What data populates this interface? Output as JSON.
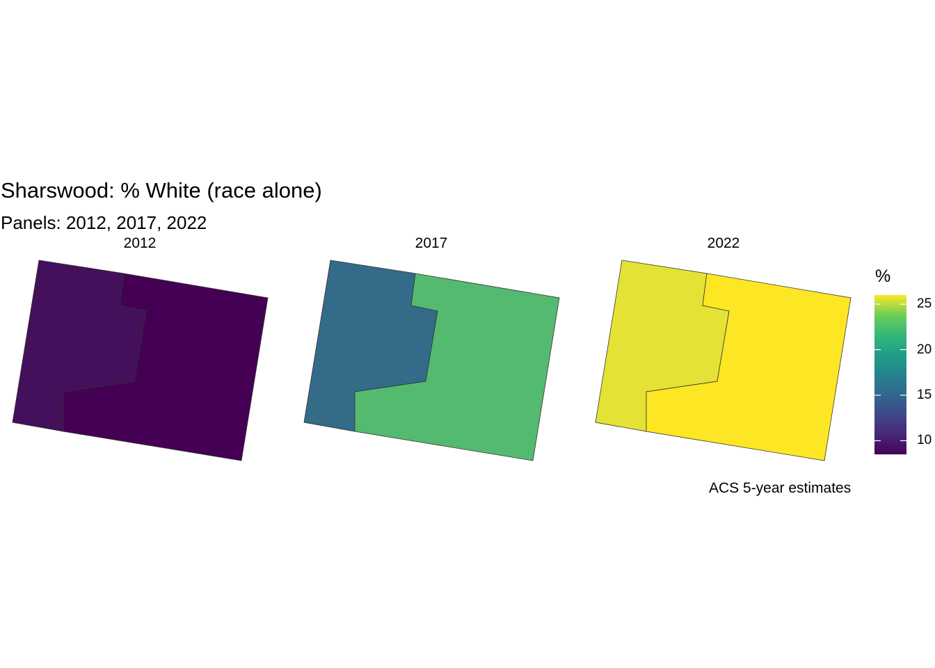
{
  "title": "Sharswood: % White (race alone)",
  "subtitle": "Panels: 2012, 2017, 2022",
  "caption": "ACS 5-year estimates",
  "legend": {
    "title": "%",
    "ticks": [
      {
        "value": 25,
        "label": "25"
      },
      {
        "value": 20,
        "label": "20"
      },
      {
        "value": 15,
        "label": "15"
      },
      {
        "value": 10,
        "label": "10"
      }
    ],
    "range": [
      8.5,
      26
    ],
    "palette": "viridis"
  },
  "chart_data": {
    "type": "choropleth",
    "variable": "% White (race alone)",
    "panels": [
      {
        "label": "2012",
        "regions": [
          {
            "id": "west-tract",
            "value": 9.6,
            "color": "#440f5b"
          },
          {
            "id": "east-tract",
            "value": 8.5,
            "color": "#440154"
          }
        ]
      },
      {
        "label": "2017",
        "regions": [
          {
            "id": "west-tract",
            "value": 15.0,
            "color": "#346b89"
          },
          {
            "id": "east-tract",
            "value": 21.3,
            "color": "#53ba70"
          }
        ]
      },
      {
        "label": "2022",
        "regions": [
          {
            "id": "west-tract",
            "value": 25.2,
            "color": "#e5e236"
          },
          {
            "id": "east-tract",
            "value": 26.0,
            "color": "#fde725"
          }
        ]
      }
    ]
  }
}
